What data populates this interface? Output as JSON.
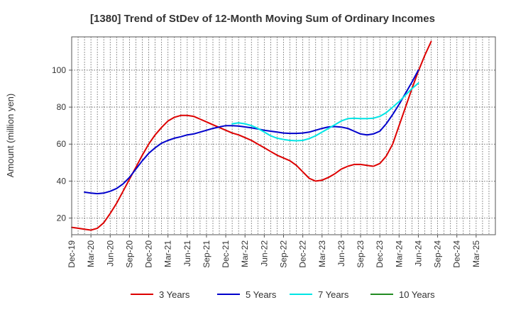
{
  "chart_data": {
    "type": "line",
    "title": "[1380]  Trend of StDev of 12-Month Moving Sum of Ordinary Incomes",
    "xlabel": "",
    "ylabel": "Amount (million yen)",
    "ylim": [
      11,
      118
    ],
    "yticks": [
      20,
      40,
      60,
      80,
      100
    ],
    "xrange": [
      0,
      66
    ],
    "x_tick_labels": [
      "Dec-19",
      "Mar-20",
      "Jun-20",
      "Sep-20",
      "Dec-20",
      "Mar-21",
      "Jun-21",
      "Sep-21",
      "Dec-21",
      "Mar-22",
      "Jun-22",
      "Sep-22",
      "Dec-22",
      "Mar-23",
      "Jun-23",
      "Sep-23",
      "Dec-23",
      "Mar-24",
      "Jun-24",
      "Sep-24",
      "Dec-24",
      "Mar-25"
    ],
    "grid": true,
    "legend_position": "bottom",
    "series": [
      {
        "name": "3 Years",
        "color": "#dd0000",
        "x": [
          0,
          1,
          2,
          3,
          4,
          5,
          6,
          7,
          8,
          9,
          10,
          11,
          12,
          13,
          14,
          15,
          16,
          17,
          18,
          19,
          20,
          21,
          22,
          23,
          24,
          25,
          26,
          27,
          28,
          29,
          30,
          31,
          32,
          33,
          34,
          35,
          36,
          37,
          38,
          39,
          40,
          41,
          42,
          43,
          44,
          45,
          46,
          47,
          48,
          49,
          50,
          51,
          52,
          53,
          54,
          55,
          56,
          57,
          58,
          59,
          60,
          61,
          62,
          63,
          64,
          65,
          66
        ],
        "values": [
          15,
          14.5,
          14,
          13.5,
          14.5,
          17.5,
          22.5,
          28,
          34.5,
          41,
          47.5,
          54,
          60,
          65,
          69,
          72.5,
          74.5,
          75.5,
          75.5,
          75,
          73.5,
          72,
          70.5,
          69,
          67.5,
          66,
          65,
          63.5,
          62,
          60,
          58,
          56,
          54,
          52.5,
          51,
          48.5,
          45,
          41.5,
          40,
          40.5,
          42,
          44,
          46.5,
          48,
          49,
          49,
          48.5,
          48,
          49.5,
          53.5,
          60,
          70,
          80,
          90,
          99.5,
          108,
          115.5,
          null,
          null,
          null,
          null,
          null,
          null,
          null,
          null,
          null,
          null
        ]
      },
      {
        "name": "5 Years",
        "color": "#0000cc",
        "x": [
          0,
          1,
          2,
          3,
          4,
          5,
          6,
          7,
          8,
          9,
          10,
          11,
          12,
          13,
          14,
          15,
          16,
          17,
          18,
          19,
          20,
          21,
          22,
          23,
          24,
          25,
          26,
          27,
          28,
          29,
          30,
          31,
          32,
          33,
          34,
          35,
          36,
          37,
          38,
          39,
          40,
          41,
          42,
          43,
          44,
          45,
          46,
          47,
          48,
          49,
          50,
          51,
          52,
          53,
          54,
          55,
          56,
          57,
          58,
          59,
          60,
          61,
          62,
          63,
          64,
          65,
          66
        ],
        "values": [
          null,
          null,
          34,
          33.5,
          33.2,
          33.5,
          34.5,
          36,
          38.5,
          42,
          46.5,
          51,
          55,
          58,
          60.5,
          62,
          63.2,
          64,
          65,
          65.5,
          66.5,
          67.5,
          68.5,
          69.3,
          70,
          70,
          69.8,
          69.3,
          68.8,
          68.2,
          67.5,
          67,
          66.5,
          66,
          65.8,
          65.8,
          66,
          66.5,
          67.5,
          68.5,
          69.3,
          69.5,
          69.2,
          68.5,
          67,
          65.5,
          65,
          65.5,
          67,
          71,
          76,
          81.5,
          87.5,
          93.5,
          100,
          null,
          null,
          null,
          null,
          null,
          null,
          null,
          null,
          null,
          null,
          null,
          null
        ]
      },
      {
        "name": "7 Years",
        "color": "#00e5e5",
        "x": [
          0,
          1,
          2,
          3,
          4,
          5,
          6,
          7,
          8,
          9,
          10,
          11,
          12,
          13,
          14,
          15,
          16,
          17,
          18,
          19,
          20,
          21,
          22,
          23,
          24,
          25,
          26,
          27,
          28,
          29,
          30,
          31,
          32,
          33,
          34,
          35,
          36,
          37,
          38,
          39,
          40,
          41,
          42,
          43,
          44,
          45,
          46,
          47,
          48,
          49,
          50,
          51,
          52,
          53,
          54,
          55,
          56,
          57,
          58,
          59,
          60,
          61,
          62,
          63,
          64,
          65,
          66
        ],
        "values": [
          null,
          null,
          null,
          null,
          null,
          null,
          null,
          null,
          null,
          null,
          null,
          null,
          null,
          null,
          null,
          null,
          null,
          null,
          null,
          null,
          null,
          null,
          null,
          null,
          null,
          71,
          71.5,
          71,
          70,
          68.5,
          66.5,
          64.5,
          63.2,
          62.5,
          62,
          61.8,
          62,
          63,
          64.5,
          66.5,
          68.5,
          70.5,
          72.5,
          73.8,
          74,
          73.8,
          73.8,
          74,
          75,
          77,
          80,
          83,
          86.5,
          90,
          93,
          null,
          null,
          null,
          null,
          null,
          null,
          null,
          null,
          null,
          null,
          null,
          null
        ]
      },
      {
        "name": "10 Years",
        "color": "#228b22",
        "x": [],
        "values": []
      }
    ]
  }
}
